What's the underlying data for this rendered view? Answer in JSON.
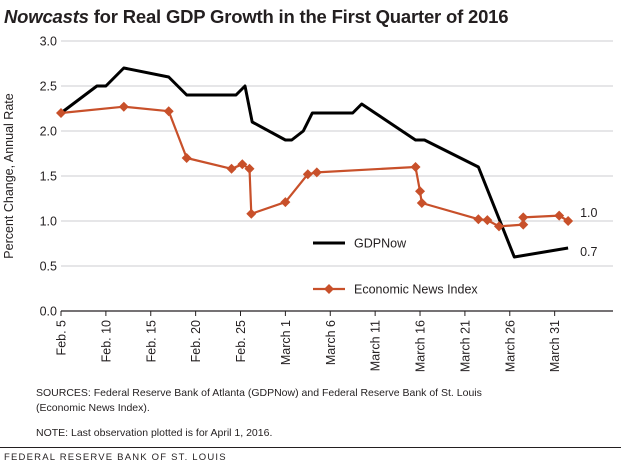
{
  "title": {
    "italic_part": "Nowcasts",
    "rest": " for Real GDP Growth in the First Quarter of 2016"
  },
  "chart_data": {
    "type": "line",
    "title": "Nowcasts for Real GDP Growth in the First Quarter of 2016",
    "ylabel": "Percent Change, Annual Rate",
    "xlabel": "",
    "ylim": [
      0,
      3
    ],
    "yticks": [
      "0.0",
      "0.5",
      "1.0",
      "1.5",
      "2.0",
      "2.5",
      "3.0"
    ],
    "x_start": "Feb. 5",
    "x_end": "April 1",
    "xticks": [
      {
        "label": "Feb. 5",
        "day": 0
      },
      {
        "label": "Feb. 10",
        "day": 5
      },
      {
        "label": "Feb. 15",
        "day": 10
      },
      {
        "label": "Feb. 20",
        "day": 15
      },
      {
        "label": "Feb. 25",
        "day": 20
      },
      {
        "label": "March 1",
        "day": 25
      },
      {
        "label": "March 6",
        "day": 30
      },
      {
        "label": "March 11",
        "day": 35
      },
      {
        "label": "March 16",
        "day": 40
      },
      {
        "label": "March 21",
        "day": 45
      },
      {
        "label": "March 26",
        "day": 50
      },
      {
        "label": "March 31",
        "day": 55
      }
    ],
    "grid": "horizontal",
    "legend_position": "center-right",
    "series": [
      {
        "name": "GDPNow",
        "color": "#000000",
        "marker": "none",
        "end_label": "0.7",
        "points": [
          [
            0,
            2.2
          ],
          [
            4,
            2.5
          ],
          [
            5,
            2.5
          ],
          [
            7,
            2.7
          ],
          [
            12,
            2.6
          ],
          [
            14,
            2.4
          ],
          [
            19.5,
            2.4
          ],
          [
            20.5,
            2.5
          ],
          [
            21.3,
            2.1
          ],
          [
            25,
            1.9
          ],
          [
            25.7,
            1.9
          ],
          [
            27,
            2.0
          ],
          [
            28,
            2.2
          ],
          [
            32.5,
            2.2
          ],
          [
            33.5,
            2.3
          ],
          [
            35,
            2.2
          ],
          [
            39.5,
            1.9
          ],
          [
            40.5,
            1.9
          ],
          [
            46.5,
            1.6
          ],
          [
            50.5,
            0.6
          ],
          [
            56.5,
            0.7
          ]
        ]
      },
      {
        "name": "Economic News Index",
        "color": "#c8502a",
        "marker": "diamond",
        "end_label": "1.0",
        "points": [
          [
            0,
            2.2
          ],
          [
            7,
            2.27
          ],
          [
            12,
            2.22
          ],
          [
            14,
            1.7
          ],
          [
            19,
            1.58
          ],
          [
            20.2,
            1.63
          ],
          [
            21,
            1.58
          ],
          [
            21.2,
            1.08
          ],
          [
            25,
            1.21
          ],
          [
            27.5,
            1.52
          ],
          [
            28.5,
            1.54
          ],
          [
            39.5,
            1.6
          ],
          [
            40,
            1.33
          ],
          [
            40.2,
            1.2
          ],
          [
            46.5,
            1.02
          ],
          [
            47.5,
            1.01
          ],
          [
            48.8,
            0.94
          ],
          [
            51.5,
            0.96
          ],
          [
            51.5,
            1.04
          ],
          [
            55.5,
            1.06
          ],
          [
            56.5,
            1.0
          ]
        ]
      }
    ]
  },
  "sources": {
    "line1": "SOURCES: Federal Reserve Bank of Atlanta (GDPNow) and Federal Reserve Bank of St. Louis",
    "line2": "(Economic News Index).",
    "note": "NOTE: Last observation plotted is for April 1, 2016."
  },
  "footer": "FEDERAL RESERVE BANK OF ST. LOUIS"
}
